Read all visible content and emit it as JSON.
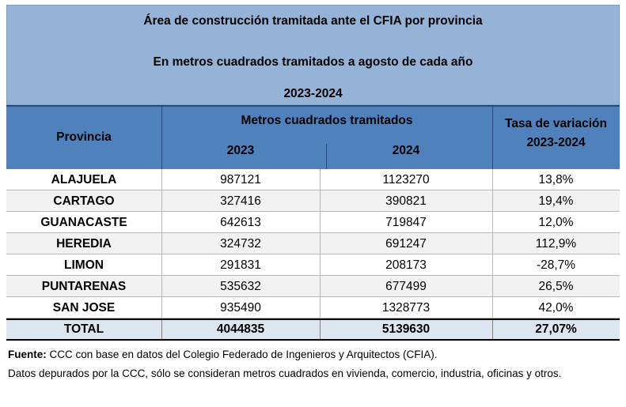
{
  "title": {
    "line1": "Área de construcción tramitada ante el CFIA por provincia",
    "line2": "En metros cuadrados tramitados a agosto de cada año",
    "line3": "2023-2024"
  },
  "headers": {
    "provincia": "Provincia",
    "metros": "Metros cuadrados tramitados",
    "year1": "2023",
    "year2": "2024",
    "tasa_line1": "Tasa de variación",
    "tasa_line2": "2023-2024"
  },
  "rows": [
    {
      "provincia": "ALAJUELA",
      "y2023": "987121",
      "y2024": "1123270",
      "tasa": "13,8%"
    },
    {
      "provincia": "CARTAGO",
      "y2023": "327416",
      "y2024": "390821",
      "tasa": "19,4%"
    },
    {
      "provincia": "GUANACASTE",
      "y2023": "642613",
      "y2024": "719847",
      "tasa": "12,0%"
    },
    {
      "provincia": "HEREDIA",
      "y2023": "324732",
      "y2024": "691247",
      "tasa": "112,9%"
    },
    {
      "provincia": "LIMON",
      "y2023": "291831",
      "y2024": "208173",
      "tasa": "-28,7%"
    },
    {
      "provincia": "PUNTARENAS",
      "y2023": "535632",
      "y2024": "677499",
      "tasa": "26,5%"
    },
    {
      "provincia": "SAN JOSE",
      "y2023": "935490",
      "y2024": "1328773",
      "tasa": "42,0%"
    }
  ],
  "total": {
    "label": "TOTAL",
    "y2023": "4044835",
    "y2024": "5139630",
    "tasa": "27,07%"
  },
  "notes": {
    "fuente_label": "Fuente:",
    "fuente_text": " CCC con base en datos del Colegio Federado de Ingenieros y Arquitectos (CFIA).",
    "depurados": "Datos depurados por la CCC, sólo se consideran metros cuadrados en vivienda, comercio, industria, oficinas y otros."
  }
}
